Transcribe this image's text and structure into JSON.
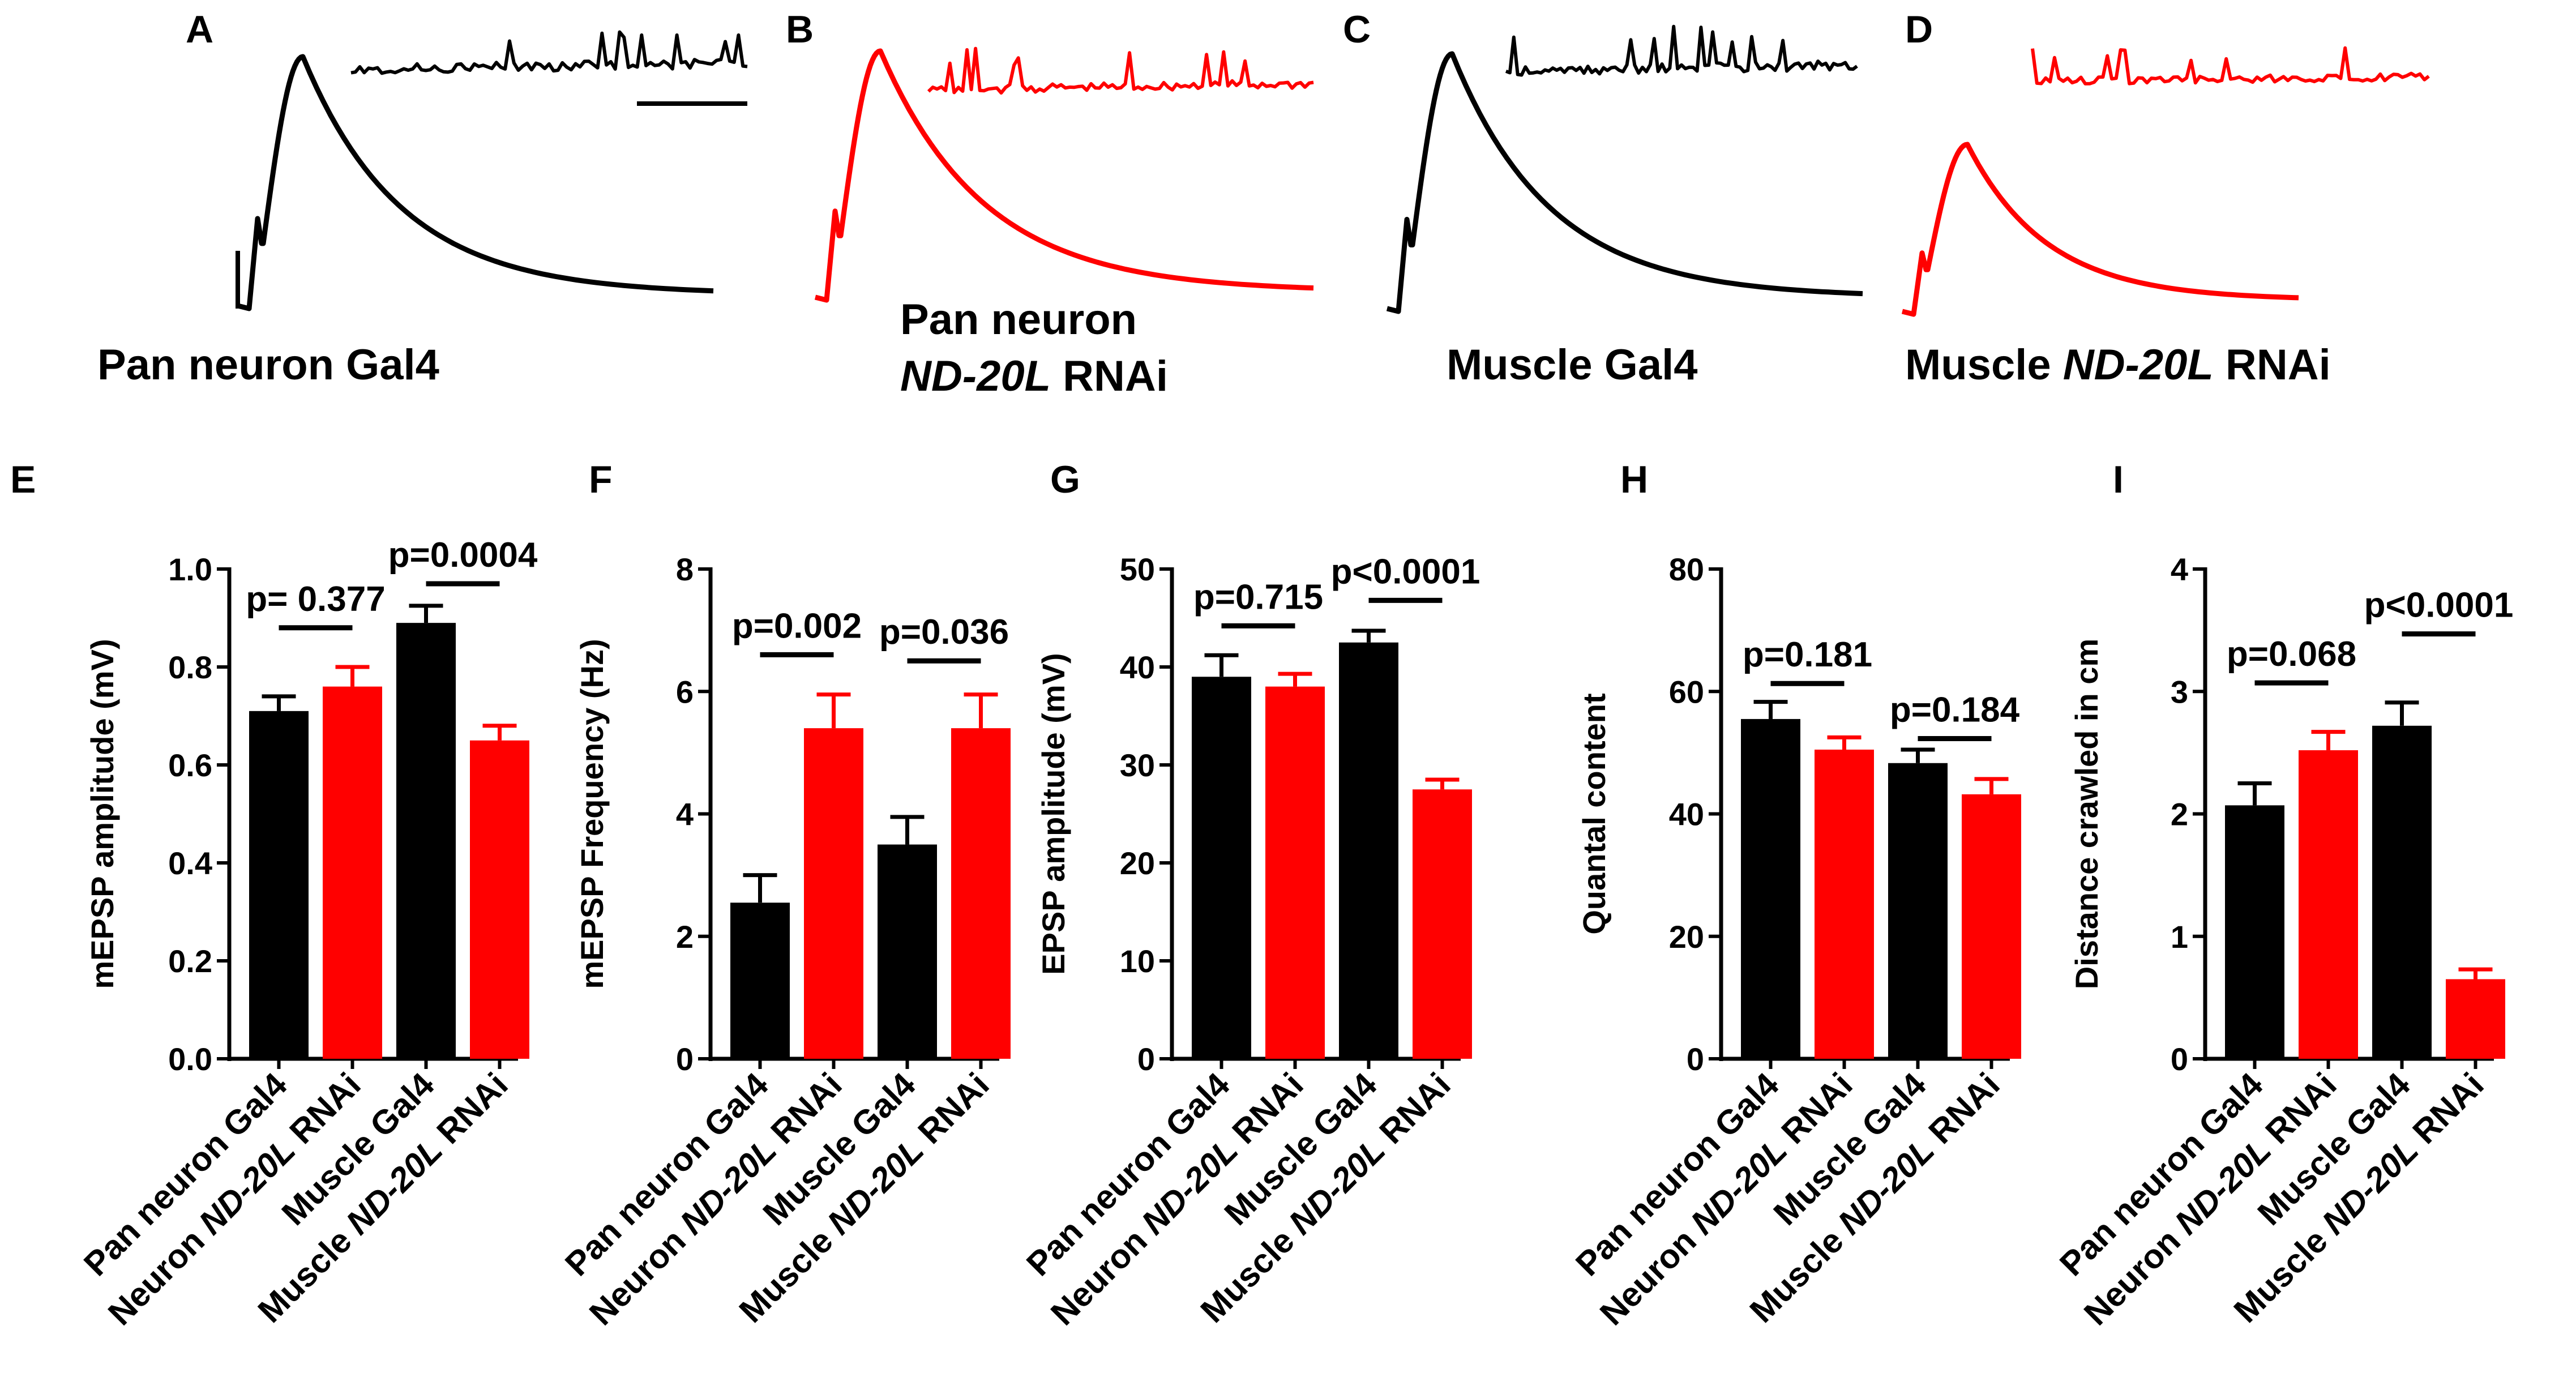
{
  "colors": {
    "control": "#000000",
    "rnai": "#ff0000"
  },
  "panels_top": [
    {
      "letter": "A",
      "label_lines": [
        [
          {
            "t": "Pan neuron Gal4",
            "i": false
          }
        ]
      ],
      "color": "#000000",
      "scale_bars": true
    },
    {
      "letter": "B",
      "label_lines": [
        [
          {
            "t": "Pan neuron",
            "i": false
          }
        ],
        [
          {
            "t": "ND-20L",
            "i": true
          },
          {
            "t": " RNAi",
            "i": false
          }
        ]
      ],
      "color": "#ff0000",
      "scale_bars": false
    },
    {
      "letter": "C",
      "label_lines": [
        [
          {
            "t": "Muscle Gal4",
            "i": false
          }
        ]
      ],
      "color": "#000000",
      "scale_bars": false
    },
    {
      "letter": "D",
      "label_lines": [
        [
          {
            "t": "Muscle ",
            "i": false
          },
          {
            "t": "ND-20L",
            "i": true
          },
          {
            "t": " RNAi",
            "i": false
          }
        ]
      ],
      "color": "#ff0000",
      "scale_bars": false
    }
  ],
  "chart_data": [
    {
      "panel": "E",
      "type": "bar",
      "ylabel": "mEPSP amplitude (mV)",
      "ylim": [
        0,
        1.0
      ],
      "yticks": [
        "0.0",
        "0.2",
        "0.4",
        "0.6",
        "0.8",
        "1.0"
      ],
      "categories": [
        [
          {
            "t": "Pan neuron Gal4",
            "i": false
          }
        ],
        [
          {
            "t": "Neuron ",
            "i": false
          },
          {
            "t": "ND-20L",
            "i": true
          },
          {
            "t": " RNAi",
            "i": false
          }
        ],
        [
          {
            "t": "Muscle Gal4",
            "i": false
          }
        ],
        [
          {
            "t": "Muscle ",
            "i": false
          },
          {
            "t": "ND-20L",
            "i": true
          },
          {
            "t": " RNAi",
            "i": false
          }
        ]
      ],
      "values": [
        0.71,
        0.76,
        0.89,
        0.65
      ],
      "errors": [
        0.03,
        0.04,
        0.035,
        0.03
      ],
      "annotations": [
        {
          "text": "p= 0.377",
          "bars": [
            0,
            1
          ],
          "y": 0.88
        },
        {
          "text": "p=0.0004",
          "bars": [
            2,
            3
          ],
          "y": 0.97
        }
      ]
    },
    {
      "panel": "F",
      "type": "bar",
      "ylabel": "mEPSP Frequency (Hz)",
      "ylim": [
        0,
        8
      ],
      "yticks": [
        "0",
        "2",
        "4",
        "6",
        "8"
      ],
      "categories": [
        [
          {
            "t": "Pan neuron Gal4",
            "i": false
          }
        ],
        [
          {
            "t": "Neuron ",
            "i": false
          },
          {
            "t": "ND-20L",
            "i": true
          },
          {
            "t": " RNAi",
            "i": false
          }
        ],
        [
          {
            "t": "Muscle Gal4",
            "i": false
          }
        ],
        [
          {
            "t": "Muscle ",
            "i": false
          },
          {
            "t": "ND-20L",
            "i": true
          },
          {
            "t": " RNAi",
            "i": false
          }
        ]
      ],
      "values": [
        2.55,
        5.4,
        3.5,
        5.4
      ],
      "errors": [
        0.45,
        0.55,
        0.45,
        0.55
      ],
      "annotations": [
        {
          "text": "p=0.002",
          "bars": [
            0,
            1
          ],
          "y": 6.6
        },
        {
          "text": "p=0.036",
          "bars": [
            2,
            3
          ],
          "y": 6.5
        }
      ]
    },
    {
      "panel": "G",
      "type": "bar",
      "ylabel": "EPSP amplitude (mV)",
      "ylim": [
        0,
        50
      ],
      "yticks": [
        "0",
        "10",
        "20",
        "30",
        "40",
        "50"
      ],
      "categories": [
        [
          {
            "t": "Pan neuron Gal4",
            "i": false
          }
        ],
        [
          {
            "t": "Neuron ",
            "i": false
          },
          {
            "t": "ND-20L",
            "i": true
          },
          {
            "t": " RNAi",
            "i": false
          }
        ],
        [
          {
            "t": "Muscle Gal4",
            "i": false
          }
        ],
        [
          {
            "t": "Muscle ",
            "i": false
          },
          {
            "t": "ND-20L",
            "i": true
          },
          {
            "t": " RNAi",
            "i": false
          }
        ]
      ],
      "values": [
        39,
        38,
        42.5,
        27.5
      ],
      "errors": [
        2.2,
        1.3,
        1.2,
        1.0
      ],
      "annotations": [
        {
          "text": "p=0.715",
          "bars": [
            0,
            1
          ],
          "y": 44.2
        },
        {
          "text": "p<0.0001",
          "bars": [
            2,
            3
          ],
          "y": 46.8
        }
      ]
    },
    {
      "panel": "H",
      "type": "bar",
      "ylabel": "Quantal content",
      "ylim": [
        0,
        80
      ],
      "yticks": [
        "0",
        "20",
        "40",
        "60",
        "80"
      ],
      "categories": [
        [
          {
            "t": "Pan neuron Gal4",
            "i": false
          }
        ],
        [
          {
            "t": "Neuron ",
            "i": false
          },
          {
            "t": "ND-20L",
            "i": true
          },
          {
            "t": " RNAi",
            "i": false
          }
        ],
        [
          {
            "t": "Muscle Gal4",
            "i": false
          }
        ],
        [
          {
            "t": "Muscle ",
            "i": false
          },
          {
            "t": "ND-20L",
            "i": true
          },
          {
            "t": " RNAi",
            "i": false
          }
        ]
      ],
      "values": [
        55.5,
        50.5,
        48.3,
        43.2
      ],
      "errors": [
        2.8,
        2.0,
        2.2,
        2.5
      ],
      "annotations": [
        {
          "text": "p=0.181",
          "bars": [
            0,
            1
          ],
          "y": 61.3
        },
        {
          "text": "p=0.184",
          "bars": [
            2,
            3
          ],
          "y": 52.3
        }
      ]
    },
    {
      "panel": "I",
      "type": "bar",
      "ylabel": "Distance crawled in cm",
      "ylim": [
        0,
        4
      ],
      "yticks": [
        "0",
        "1",
        "2",
        "3",
        "4"
      ],
      "categories": [
        [
          {
            "t": "Pan neuron Gal4",
            "i": false
          }
        ],
        [
          {
            "t": "Neuron ",
            "i": false
          },
          {
            "t": "ND-20L",
            "i": true
          },
          {
            "t": " RNAi",
            "i": false
          }
        ],
        [
          {
            "t": "Muscle Gal4",
            "i": false
          }
        ],
        [
          {
            "t": "Muscle ",
            "i": false
          },
          {
            "t": "ND-20L",
            "i": true
          },
          {
            "t": " RNAi",
            "i": false
          }
        ]
      ],
      "values": [
        2.07,
        2.52,
        2.72,
        0.65
      ],
      "errors": [
        0.18,
        0.15,
        0.19,
        0.08
      ],
      "annotations": [
        {
          "text": "p=0.068",
          "bars": [
            0,
            1
          ],
          "y": 3.07
        },
        {
          "text": "p<0.0001",
          "bars": [
            2,
            3
          ],
          "y": 3.47
        }
      ]
    }
  ]
}
